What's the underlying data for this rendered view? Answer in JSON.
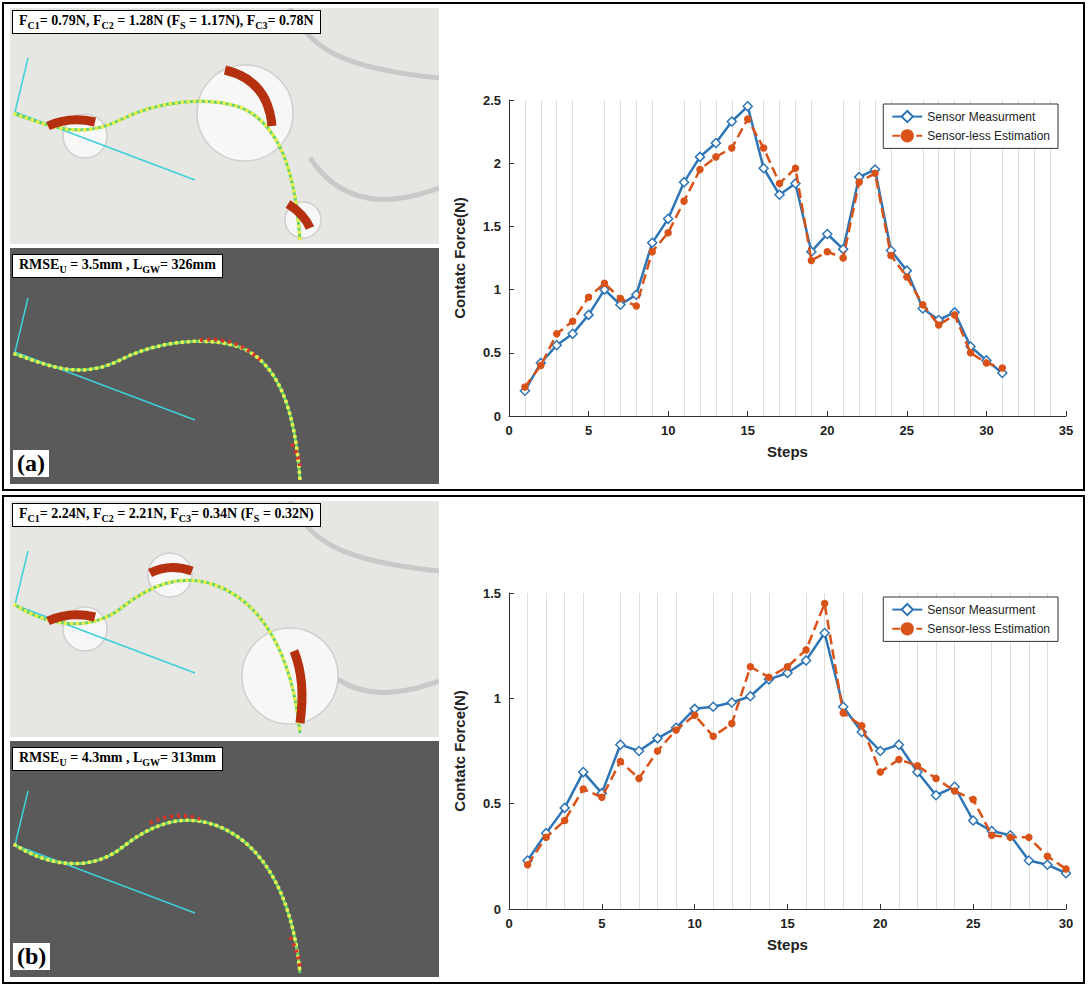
{
  "panels": [
    {
      "label": "(a)",
      "force_text": [
        {
          "text": "F"
        },
        {
          "sub": "C1"
        },
        {
          "text": "= 0.79N, F"
        },
        {
          "sub": "C2"
        },
        {
          "text": " = 1.28N (F"
        },
        {
          "sub": "S"
        },
        {
          "text": " = 1.17N), F"
        },
        {
          "sub": "C3"
        },
        {
          "text": "= 0.78N"
        }
      ],
      "sim_text": [
        {
          "text": "RMSE"
        },
        {
          "sub": "U"
        },
        {
          "text": " = 3.5mm , L"
        },
        {
          "sub": "GW"
        },
        {
          "text": "= 326mm"
        }
      ]
    },
    {
      "label": "(b)",
      "force_text": [
        {
          "text": "F"
        },
        {
          "sub": "C1"
        },
        {
          "text": "= 2.24N, F"
        },
        {
          "sub": "C2"
        },
        {
          "text": " = 2.21N, F"
        },
        {
          "sub": "C3"
        },
        {
          "text": "= 0.34N (F"
        },
        {
          "sub": "S"
        },
        {
          "text": " = 0.32N)"
        }
      ],
      "sim_text": [
        {
          "text": "RMSE"
        },
        {
          "sub": "U"
        },
        {
          "text": " = 4.3mm , L"
        },
        {
          "sub": "GW"
        },
        {
          "text": "= 313mm"
        }
      ]
    }
  ],
  "chart_data": [
    {
      "type": "line",
      "x_label": "Steps",
      "y_label": "Contatc Force(N)",
      "x": [
        1,
        2,
        3,
        4,
        5,
        6,
        7,
        8,
        9,
        10,
        11,
        12,
        13,
        14,
        15,
        16,
        17,
        18,
        19,
        20,
        21,
        22,
        23,
        24,
        25,
        26,
        27,
        28,
        29,
        30,
        31
      ],
      "xlim": [
        0,
        35
      ],
      "xticks": [
        0,
        5,
        10,
        15,
        20,
        25,
        30,
        35
      ],
      "ylim": [
        0,
        2.5
      ],
      "yticks": [
        0,
        0.5,
        1,
        1.5,
        2,
        2.5
      ],
      "grid": true,
      "legend": "upper right",
      "series": [
        {
          "name": "Sensor Measurment",
          "color": "#2e75b6",
          "marker": "diamond",
          "line_style": "solid",
          "values": [
            0.2,
            0.42,
            0.56,
            0.65,
            0.8,
            1.0,
            0.88,
            0.96,
            1.37,
            1.56,
            1.85,
            2.05,
            2.16,
            2.33,
            2.45,
            1.96,
            1.75,
            1.84,
            1.3,
            1.44,
            1.32,
            1.89,
            1.95,
            1.31,
            1.15,
            0.85,
            0.76,
            0.82,
            0.55,
            0.44,
            0.34
          ]
        },
        {
          "name": "Sensor-less Estimation",
          "color": "#d95319",
          "marker": "circle",
          "line_style": "dashed",
          "values": [
            0.23,
            0.4,
            0.65,
            0.75,
            0.94,
            1.05,
            0.93,
            0.87,
            1.3,
            1.45,
            1.7,
            1.95,
            2.05,
            2.12,
            2.35,
            2.12,
            1.84,
            1.96,
            1.23,
            1.3,
            1.25,
            1.85,
            1.92,
            1.27,
            1.1,
            0.88,
            0.72,
            0.8,
            0.5,
            0.42,
            0.38
          ]
        }
      ]
    },
    {
      "type": "line",
      "x_label": "Steps",
      "y_label": "Contatc Force(N)",
      "x": [
        1,
        2,
        3,
        4,
        5,
        6,
        7,
        8,
        9,
        10,
        11,
        12,
        13,
        14,
        15,
        16,
        17,
        18,
        19,
        20,
        21,
        22,
        23,
        24,
        25,
        26,
        27,
        28,
        29,
        30
      ],
      "xlim": [
        0,
        30
      ],
      "xticks": [
        0,
        5,
        10,
        15,
        20,
        25,
        30
      ],
      "ylim": [
        0,
        1.5
      ],
      "yticks": [
        0,
        0.5,
        1,
        1.5
      ],
      "grid": true,
      "legend": "upper right",
      "series": [
        {
          "name": "Sensor Measurment",
          "color": "#2e75b6",
          "marker": "diamond",
          "line_style": "solid",
          "values": [
            0.23,
            0.36,
            0.48,
            0.65,
            0.55,
            0.78,
            0.75,
            0.81,
            0.86,
            0.95,
            0.96,
            0.98,
            1.01,
            1.09,
            1.12,
            1.18,
            1.31,
            0.96,
            0.84,
            0.75,
            0.78,
            0.65,
            0.54,
            0.58,
            0.42,
            0.37,
            0.35,
            0.23,
            0.21,
            0.17
          ]
        },
        {
          "name": "Sensor-less Estimation",
          "color": "#d95319",
          "marker": "circle",
          "line_style": "dashed",
          "values": [
            0.21,
            0.34,
            0.42,
            0.57,
            0.53,
            0.7,
            0.62,
            0.75,
            0.85,
            0.92,
            0.82,
            0.88,
            1.15,
            1.1,
            1.15,
            1.23,
            1.45,
            0.93,
            0.87,
            0.65,
            0.71,
            0.68,
            0.62,
            0.56,
            0.52,
            0.35,
            0.34,
            0.34,
            0.25,
            0.19
          ]
        }
      ]
    }
  ]
}
